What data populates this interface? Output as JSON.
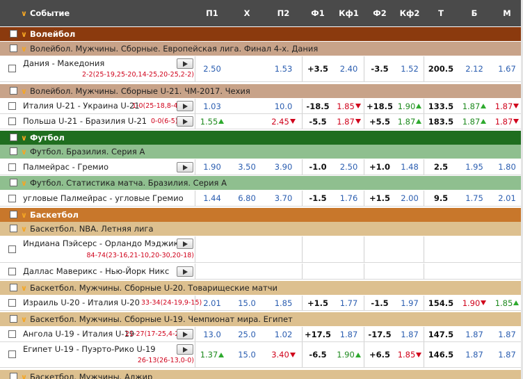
{
  "header": {
    "event": "Событие",
    "p1": "П1",
    "x": "X",
    "p2": "П2",
    "f1": "Ф1",
    "kf1": "Кф1",
    "f2": "Ф2",
    "kf2": "Кф2",
    "t": "Т",
    "b": "Б",
    "m": "М"
  },
  "colors": {
    "header_bg": "#4a4a4a",
    "volleyball_sport": "#8b3a0e",
    "volleyball_league": "#c8a389",
    "football_sport": "#1f6e1f",
    "football_league": "#8fbf8f",
    "basketball_sport": "#c8772b",
    "basketball_league": "#ddc08f",
    "up": "#2eaa2e",
    "down": "#d0021b",
    "odd": "#2a5db0"
  },
  "sports": {
    "volleyball": "Волейбол",
    "football": "Футбол",
    "basketball": "Баскетбол"
  },
  "leagues": {
    "v1": "Волейбол. Мужчины. Сборные. Европейская лига. Финал 4-х. Дания",
    "v2": "Волейбол. Мужчины. Сборные U-21. ЧМ-2017. Чехия",
    "f1": "Футбол. Бразилия. Серия А",
    "f2": "Футбол. Статистика матча. Бразилия. Серия А",
    "b1": "Баскетбол. NBA. Летняя лига",
    "b2": "Баскетбол. Мужчины. Сборные U-20. Товарищеские матчи",
    "b3": "Баскетбол. Мужчины. Сборные U-19. Чемпионат мира. Египет",
    "b4": "Баскетбол. Мужчины. Алжир"
  },
  "events": {
    "e1": {
      "name": "Дания - Македония",
      "score": "2-2(25-19,25-20,14-25,20-25,2-2)",
      "p1": "2.50",
      "x": "",
      "p2": "1.53",
      "f1": "+3.5",
      "kf1": "2.40",
      "f2": "-3.5",
      "kf2": "1.52",
      "t": "200.5",
      "b": "2.12",
      "m": "1.67"
    },
    "e2": {
      "name": "Италия U-21 - Украина U-21",
      "score": "1-0(25-18,8-4)",
      "p1": "1.03",
      "x": "",
      "p2": "10.0",
      "f1": "-18.5",
      "kf1": "1.85",
      "f2": "+18.5",
      "kf2": "1.90",
      "t": "133.5",
      "b": "1.87",
      "m": "1.87"
    },
    "e3": {
      "name": "Польша U-21 - Бразилия U-21",
      "score": "0-0(6-5)",
      "p1": "1.55",
      "x": "",
      "p2": "2.45",
      "f1": "-5.5",
      "kf1": "1.87",
      "f2": "+5.5",
      "kf2": "1.87",
      "t": "183.5",
      "b": "1.87",
      "m": "1.87"
    },
    "e4": {
      "name": "Палмейрас - Гремио",
      "score": "",
      "p1": "1.90",
      "x": "3.50",
      "p2": "3.90",
      "f1": "-1.0",
      "kf1": "2.50",
      "f2": "+1.0",
      "kf2": "1.48",
      "t": "2.5",
      "b": "1.95",
      "m": "1.80"
    },
    "e5": {
      "name": "угловые Палмейрас - угловые Гремио",
      "score": "",
      "p1": "1.44",
      "x": "6.80",
      "p2": "3.70",
      "f1": "-1.5",
      "kf1": "1.76",
      "f2": "+1.5",
      "kf2": "2.00",
      "t": "9.5",
      "b": "1.75",
      "m": "2.01"
    },
    "e6": {
      "name": "Индиана Пэйсерс - Орландо Мэджик",
      "score": "84-74(23-16,21-10,20-30,20-18)"
    },
    "e7": {
      "name": "Даллас Маверикс - Нью-Йорк Никс",
      "score": ""
    },
    "e8": {
      "name": "Израиль U-20 - Италия U-20",
      "score": "33-34(24-19,9-15)",
      "p1": "2.01",
      "x": "15.0",
      "p2": "1.85",
      "f1": "+1.5",
      "kf1": "1.77",
      "f2": "-1.5",
      "kf2": "1.97",
      "t": "154.5",
      "b": "1.90",
      "m": "1.85"
    },
    "e9": {
      "name": "Ангола U-19 - Италия U-19",
      "score": "21-27(17-25,4-2)",
      "p1": "13.0",
      "x": "25.0",
      "p2": "1.02",
      "f1": "+17.5",
      "kf1": "1.87",
      "f2": "-17.5",
      "kf2": "1.87",
      "t": "147.5",
      "b": "1.87",
      "m": "1.87"
    },
    "e10": {
      "name": "Египет U-19 - Пуэрто-Рико U-19",
      "score": "26-13(26-13,0-0)",
      "p1": "1.37",
      "x": "15.0",
      "p2": "3.40",
      "f1": "-6.5",
      "kf1": "1.90",
      "f2": "+6.5",
      "kf2": "1.85",
      "t": "146.5",
      "b": "1.87",
      "m": "1.87"
    }
  }
}
